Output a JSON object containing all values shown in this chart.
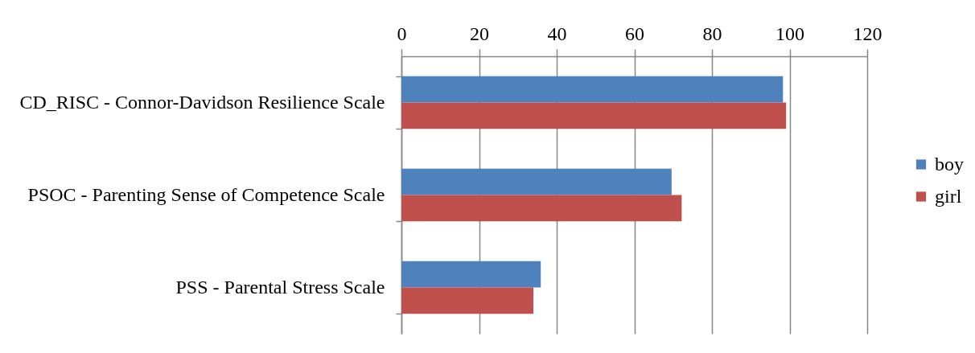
{
  "chart_data": {
    "type": "bar",
    "orientation": "horizontal",
    "categories": [
      "CD_RISC - Connor-Davidson Resilience Scale",
      "PSOC - Parenting Sense of Competence Scale",
      "PSS - Parental Stress Scale"
    ],
    "series": [
      {
        "name": "boy",
        "color": "#4f81bd",
        "values": [
          98.3,
          69.6,
          35.9
        ]
      },
      {
        "name": "girl",
        "color": "#c0504d",
        "values": [
          99.1,
          72.2,
          34.0
        ]
      }
    ],
    "xlim": [
      0,
      120
    ],
    "xticks": [
      0,
      20,
      40,
      60,
      80,
      100,
      120
    ],
    "grid": "x",
    "legend": "right"
  }
}
